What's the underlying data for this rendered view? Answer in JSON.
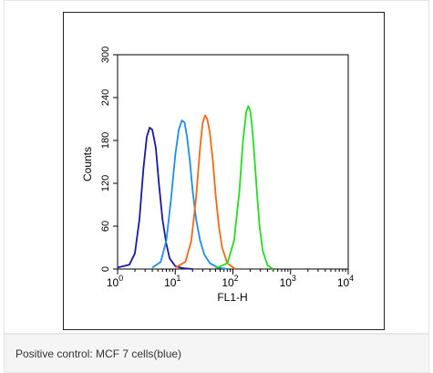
{
  "caption": "Positive control: MCF 7 cells(blue)",
  "chart_data": {
    "type": "line",
    "title": "",
    "xlabel": "FL1-H",
    "ylabel": "Counts",
    "xscale": "log",
    "xlim": [
      1,
      10000
    ],
    "ylim": [
      0,
      300
    ],
    "yticks": [
      0,
      60,
      120,
      180,
      240,
      300
    ],
    "xticks": [
      {
        "value": 1,
        "base": "10",
        "exp": "0"
      },
      {
        "value": 10,
        "base": "10",
        "exp": "1"
      },
      {
        "value": 100,
        "base": "10",
        "exp": "2"
      },
      {
        "value": 1000,
        "base": "10",
        "exp": "3"
      },
      {
        "value": 10000,
        "base": "10",
        "exp": "4"
      }
    ],
    "grid": false,
    "legend": "none",
    "series": [
      {
        "color": "#1a1aa0",
        "x": [
          1.0,
          1.6,
          2.0,
          2.4,
          2.8,
          3.2,
          3.6,
          4.0,
          4.6,
          5.2,
          6.0,
          7.0,
          8.0,
          10.0,
          14.0,
          20.0
        ],
        "y": [
          2,
          6,
          22,
          70,
          140,
          185,
          198,
          195,
          170,
          120,
          70,
          35,
          15,
          4,
          1,
          0
        ]
      },
      {
        "color": "#1e8fe0",
        "x": [
          4.0,
          5.6,
          7.0,
          8.5,
          10.0,
          11.5,
          13.0,
          14.5,
          16.0,
          18.0,
          20.0,
          23.0,
          27.0,
          32.0,
          40.0,
          55.0,
          80.0
        ],
        "y": [
          2,
          10,
          40,
          100,
          160,
          195,
          208,
          205,
          185,
          150,
          110,
          70,
          40,
          20,
          8,
          2,
          0
        ]
      },
      {
        "color": "#f06a14",
        "x": [
          10.0,
          15.0,
          19.0,
          23.0,
          27.0,
          30.0,
          33.0,
          36.0,
          40.0,
          45.0,
          50.0,
          57.0,
          65.0,
          80.0,
          110.0
        ],
        "y": [
          2,
          10,
          40,
          100,
          170,
          205,
          215,
          210,
          190,
          150,
          105,
          60,
          30,
          8,
          0
        ]
      },
      {
        "color": "#22dd22",
        "x": [
          50.0,
          80.0,
          105.0,
          130.0,
          150.0,
          170.0,
          185.0,
          200.0,
          215.0,
          235.0,
          260.0,
          290.0,
          330.0,
          400.0,
          500.0
        ],
        "y": [
          1,
          8,
          40,
          110,
          180,
          220,
          228,
          222,
          200,
          160,
          110,
          60,
          25,
          5,
          0
        ]
      }
    ]
  }
}
